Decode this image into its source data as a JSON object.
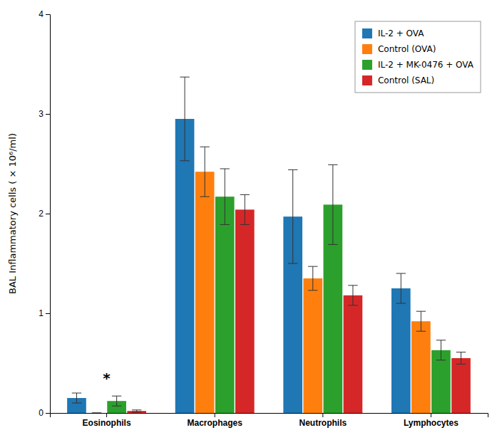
{
  "chart_data": {
    "type": "bar",
    "categories": [
      "Eosinophils",
      "Macrophages",
      "Neutrophils",
      "Lymphocytes"
    ],
    "series": [
      {
        "name": "IL-2 + OVA",
        "values": [
          0.15,
          2.95,
          1.97,
          1.25
        ],
        "errors": [
          0.05,
          0.42,
          0.47,
          0.15
        ]
      },
      {
        "name": "Control (OVA)",
        "values": [
          0.0,
          2.42,
          1.35,
          0.92
        ],
        "errors": [
          0.0,
          0.25,
          0.12,
          0.1
        ]
      },
      {
        "name": "IL-2 + MK-0476 + OVA",
        "values": [
          0.12,
          2.17,
          2.09,
          0.63
        ],
        "errors": [
          0.05,
          0.28,
          0.4,
          0.1
        ]
      },
      {
        "name": "Control (SAL)",
        "values": [
          0.02,
          2.04,
          1.18,
          0.55
        ],
        "errors": [
          0.01,
          0.15,
          0.1,
          0.06
        ]
      }
    ],
    "ylabel": "BAL Inflammatory cells ( × 10⁶/ml)",
    "ylim": [
      0,
      4.0
    ],
    "yticks": [
      0,
      1,
      2,
      3,
      4
    ],
    "annotations": [
      {
        "text": "*",
        "x": "Eosinophils",
        "y": 0.3
      }
    ],
    "legend": "upper right",
    "grid": false
  }
}
